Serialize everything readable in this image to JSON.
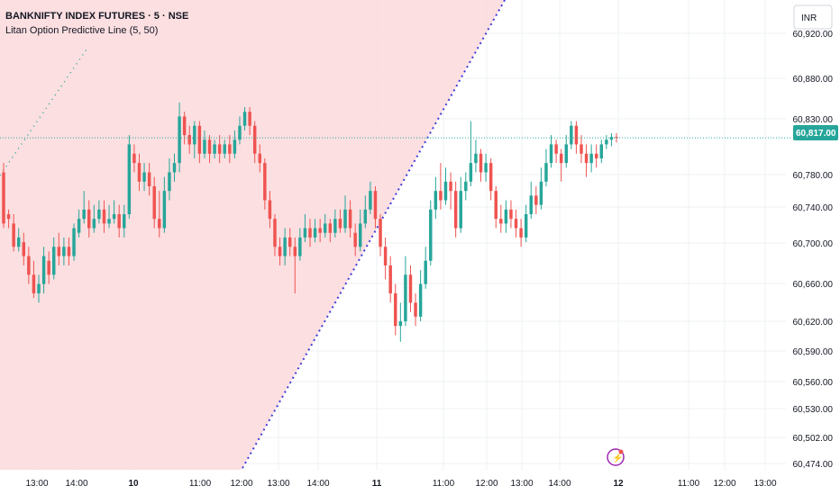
{
  "header": {
    "symbol": "BANKNIFTY INDEX FUTURES · 5 · NSE",
    "indicator": "Litan Option Predictive Line  (5, 50)"
  },
  "currency_label": "INR",
  "current_price_label": "60,817.00",
  "colors": {
    "up": "#26a69a",
    "down": "#ef5350",
    "shade": "#fcd9dc",
    "predictive_line": "#3d3ddb",
    "price_line": "#26a69a",
    "grid": "#eef0f3"
  },
  "chart_data": {
    "type": "candlestick",
    "price_axis": {
      "labels": [
        "60,920.00",
        "60,880.00",
        "60,830.00",
        "60,780.00",
        "60,740.00",
        "60,700.00",
        "60,660.00",
        "60,620.00",
        "60,590.00",
        "60,560.00",
        "60,530.00",
        "60,502.00",
        "60,474.00"
      ]
    },
    "time_axis": {
      "labels": [
        "13:00",
        "14:00",
        "10",
        "11:00",
        "12:00",
        "13:00",
        "14:00",
        "11",
        "11:00",
        "12:00",
        "13:00",
        "14:00",
        "12",
        "11:00",
        "12:00",
        "13:00"
      ]
    },
    "current_price": 60817,
    "candles": [
      [
        60780,
        60725,
        60790,
        60720
      ],
      [
        60735,
        60730,
        60740,
        60720
      ],
      [
        60725,
        60700,
        60735,
        60695
      ],
      [
        60700,
        60710,
        60720,
        60695
      ],
      [
        60705,
        60690,
        60715,
        60680
      ],
      [
        60690,
        60670,
        60700,
        60660
      ],
      [
        60670,
        60650,
        60685,
        60645
      ],
      [
        60650,
        60660,
        60670,
        60640
      ],
      [
        60660,
        60690,
        60700,
        60650
      ],
      [
        60685,
        60670,
        60695,
        60660
      ],
      [
        60670,
        60700,
        60710,
        60665
      ],
      [
        60700,
        60690,
        60715,
        60680
      ],
      [
        60690,
        60700,
        60710,
        60680
      ],
      [
        60700,
        60690,
        60710,
        60680
      ],
      [
        60690,
        60720,
        60725,
        60685
      ],
      [
        60715,
        60730,
        60740,
        60710
      ],
      [
        60730,
        60740,
        60760,
        60725
      ],
      [
        60740,
        60720,
        60750,
        60710
      ],
      [
        60720,
        60730,
        60745,
        60715
      ],
      [
        60730,
        60740,
        60750,
        60725
      ],
      [
        60740,
        60725,
        60750,
        60715
      ],
      [
        60725,
        60730,
        60745,
        60720
      ],
      [
        60730,
        60735,
        60750,
        60725
      ],
      [
        60735,
        60720,
        60745,
        60710
      ],
      [
        60720,
        60735,
        60745,
        60710
      ],
      [
        60735,
        60810,
        60820,
        60730
      ],
      [
        60800,
        60790,
        60810,
        60780
      ],
      [
        60790,
        60770,
        60800,
        60760
      ],
      [
        60770,
        60780,
        60790,
        60760
      ],
      [
        60780,
        60765,
        60790,
        60755
      ],
      [
        60765,
        60730,
        60775,
        60720
      ],
      [
        60730,
        60720,
        60760,
        60710
      ],
      [
        60720,
        60760,
        60775,
        60715
      ],
      [
        60760,
        60780,
        60795,
        60750
      ],
      [
        60780,
        60790,
        60800,
        60770
      ],
      [
        60790,
        60840,
        60855,
        60780
      ],
      [
        60840,
        60820,
        60845,
        60810
      ],
      [
        60820,
        60810,
        60830,
        60800
      ],
      [
        60810,
        60830,
        60835,
        60795
      ],
      [
        60830,
        60800,
        60835,
        60790
      ],
      [
        60800,
        60815,
        60825,
        60795
      ],
      [
        60815,
        60800,
        60820,
        60790
      ],
      [
        60800,
        60810,
        60815,
        60795
      ],
      [
        60810,
        60800,
        60820,
        60790
      ],
      [
        60800,
        60810,
        60815,
        60795
      ],
      [
        60810,
        60800,
        60820,
        60790
      ],
      [
        60800,
        60815,
        60825,
        60795
      ],
      [
        60815,
        60830,
        60840,
        60810
      ],
      [
        60830,
        60845,
        60850,
        60825
      ],
      [
        60845,
        60830,
        60850,
        60820
      ],
      [
        60830,
        60800,
        60835,
        60790
      ],
      [
        60800,
        60790,
        60810,
        60780
      ],
      [
        60790,
        60750,
        60795,
        60740
      ],
      [
        60750,
        60730,
        60760,
        60720
      ],
      [
        60730,
        60700,
        60735,
        60690
      ],
      [
        60700,
        60690,
        60710,
        60680
      ],
      [
        60690,
        60710,
        60720,
        60680
      ],
      [
        60710,
        60700,
        60720,
        60690
      ],
      [
        60700,
        60690,
        60710,
        60650
      ],
      [
        60690,
        60710,
        60720,
        60685
      ],
      [
        60710,
        60720,
        60735,
        60705
      ],
      [
        60720,
        60710,
        60730,
        60700
      ],
      [
        60710,
        60720,
        60730,
        60705
      ],
      [
        60720,
        60715,
        60730,
        60705
      ],
      [
        60715,
        60725,
        60735,
        60710
      ],
      [
        60725,
        60715,
        60730,
        60705
      ],
      [
        60715,
        60730,
        60740,
        60710
      ],
      [
        60730,
        60720,
        60740,
        60715
      ],
      [
        60720,
        60740,
        60755,
        60715
      ],
      [
        60740,
        60720,
        60750,
        60710
      ],
      [
        60715,
        60700,
        60725,
        60690
      ],
      [
        60700,
        60725,
        60740,
        60695
      ],
      [
        60725,
        60740,
        60755,
        60720
      ],
      [
        60740,
        60760,
        60770,
        60735
      ],
      [
        60760,
        60730,
        60765,
        60720
      ],
      [
        60730,
        60700,
        60735,
        60690
      ],
      [
        60700,
        60680,
        60710,
        60665
      ],
      [
        60680,
        60650,
        60690,
        60640
      ],
      [
        60650,
        60615,
        60660,
        60605
      ],
      [
        60615,
        60620,
        60640,
        60598
      ],
      [
        60620,
        60670,
        60690,
        60615
      ],
      [
        60670,
        60640,
        60680,
        60630
      ],
      [
        60640,
        60625,
        60650,
        60615
      ],
      [
        60625,
        60660,
        60675,
        60620
      ],
      [
        60660,
        60685,
        60700,
        60655
      ],
      [
        60685,
        60740,
        60750,
        60680
      ],
      [
        60740,
        60760,
        60775,
        60730
      ],
      [
        60760,
        60750,
        60790,
        60740
      ],
      [
        60750,
        60770,
        60785,
        60745
      ],
      [
        60770,
        60760,
        60780,
        60740
      ],
      [
        60760,
        60720,
        60770,
        60710
      ],
      [
        60720,
        60760,
        60775,
        60715
      ],
      [
        60760,
        60770,
        60780,
        60750
      ],
      [
        60770,
        60790,
        60835,
        60765
      ],
      [
        60790,
        60800,
        60815,
        60780
      ],
      [
        60800,
        60780,
        60805,
        60770
      ],
      [
        60780,
        60790,
        60800,
        60770
      ],
      [
        60790,
        60760,
        60795,
        60750
      ],
      [
        60760,
        60730,
        60765,
        60720
      ],
      [
        60730,
        60725,
        60745,
        60715
      ],
      [
        60725,
        60740,
        60750,
        60715
      ],
      [
        60740,
        60730,
        60750,
        60720
      ],
      [
        60730,
        60720,
        60740,
        60710
      ],
      [
        60720,
        60710,
        60730,
        60700
      ],
      [
        60710,
        60735,
        60745,
        60705
      ],
      [
        60735,
        60755,
        60770,
        60730
      ],
      [
        60755,
        60745,
        60765,
        60735
      ],
      [
        60745,
        60770,
        60785,
        60740
      ],
      [
        60770,
        60790,
        60805,
        60765
      ],
      [
        60790,
        60810,
        60820,
        60785
      ],
      [
        60810,
        60800,
        60815,
        60790
      ],
      [
        60800,
        60790,
        60805,
        60770
      ],
      [
        60790,
        60810,
        60820,
        60785
      ],
      [
        60810,
        60830,
        60835,
        60805
      ],
      [
        60830,
        60810,
        60835,
        60800
      ],
      [
        60810,
        60800,
        60820,
        60790
      ],
      [
        60800,
        60790,
        60810,
        60775
      ],
      [
        60790,
        60800,
        60810,
        60780
      ],
      [
        60800,
        60795,
        60810,
        60785
      ],
      [
        60795,
        60810,
        60815,
        60790
      ],
      [
        60810,
        60815,
        60820,
        60805
      ],
      [
        60815,
        60818,
        60822,
        60808
      ],
      [
        60818,
        60817,
        60822,
        60812
      ]
    ]
  },
  "overlay": {
    "left_symbol": "⚡"
  }
}
